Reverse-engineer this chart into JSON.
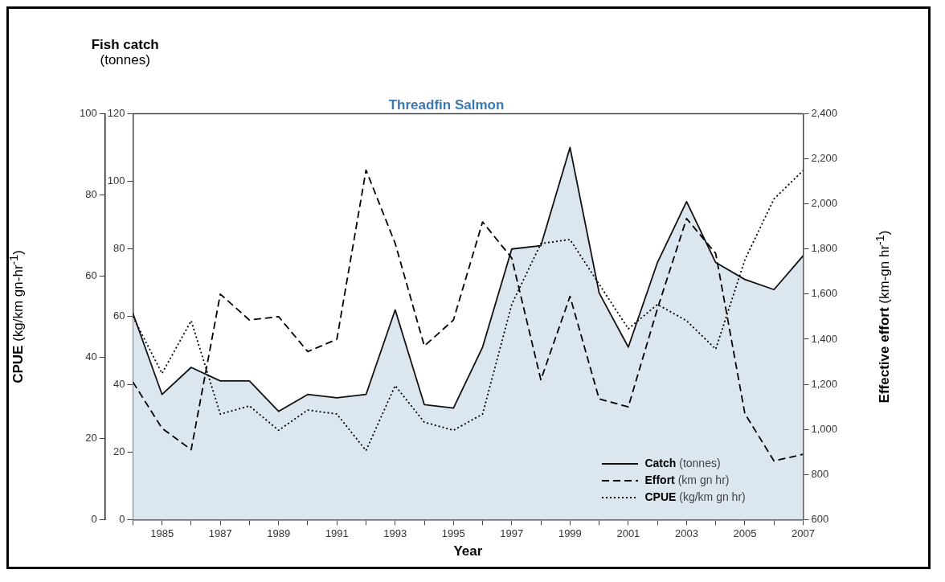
{
  "chart_data": {
    "type": "line",
    "title": "Threadfin Salmon",
    "xlabel": "Year",
    "ylabel": "Fish catch (tonnes)",
    "y2label": "Effective effort (km-gn hr$^{-1}$)",
    "y3label": "CPUE  (kg/km gn-hr$^{-1}$)",
    "x": [
      1984,
      1985,
      1986,
      1987,
      1988,
      1989,
      1990,
      1991,
      1992,
      1993,
      1994,
      1995,
      1996,
      1997,
      1998,
      1999,
      2000,
      2001,
      2002,
      2003,
      2004,
      2005,
      2006,
      2007
    ],
    "series": [
      {
        "name": "Catch (tonnes)",
        "type": "area",
        "color": "#dce6ef",
        "line_style": "solid",
        "values": [
          61,
          37,
          45,
          41,
          41,
          32,
          37,
          36,
          37,
          62,
          34,
          33,
          51,
          80,
          81,
          110,
          67,
          51,
          76,
          94,
          76,
          71,
          68,
          78
        ]
      },
      {
        "name": "Effort (km gn hr)",
        "type": "line",
        "axis": "y2",
        "color": "#000000",
        "line_style": "dashed",
        "values": [
          1210,
          1005,
          910,
          1600,
          1485,
          1500,
          1345,
          1400,
          2150,
          1825,
          1370,
          1485,
          1920,
          1760,
          1220,
          1590,
          1135,
          1100,
          1535,
          1935,
          1780,
          1070,
          860,
          890
        ]
      },
      {
        "name": "CPUE (kg/km gn hr)",
        "type": "line",
        "axis": "y3",
        "color": "#000000",
        "line_style": "dotted",
        "values": [
          50,
          36,
          49,
          26,
          28,
          22,
          27,
          26,
          17,
          33,
          24,
          22,
          26,
          53,
          68,
          69,
          58,
          47,
          53,
          49,
          42,
          64,
          79,
          86
        ]
      }
    ],
    "xlim": [
      1984,
      2007
    ],
    "xticks": [
      {
        "value": 1984,
        "label": null
      },
      1985,
      {
        "value": 1986,
        "label": null
      },
      1987,
      {
        "value": 1988,
        "label": null
      },
      1989,
      {
        "value": 1990,
        "label": null
      },
      1991,
      {
        "value": 1992,
        "label": null
      },
      1993,
      {
        "value": 1994,
        "label": null
      },
      1995,
      {
        "value": 1996,
        "label": null
      },
      1997,
      {
        "value": 1998,
        "label": null
      },
      1999,
      {
        "value": 2000,
        "label": null
      },
      2001,
      {
        "value": 2002,
        "label": null
      },
      2003,
      {
        "value": 2004,
        "label": null
      },
      2005,
      {
        "value": 2006,
        "label": null
      },
      2007
    ],
    "ylim": [
      0,
      120
    ],
    "yticks": [
      0,
      20,
      40,
      60,
      80,
      100,
      120
    ],
    "y2lim": [
      600,
      2400
    ],
    "y2ticks": [
      600,
      800,
      {
        "value": 1000,
        "label": "1,000"
      },
      {
        "value": 1200,
        "label": "1,200"
      },
      {
        "value": 1400,
        "label": "1,400"
      },
      {
        "value": 1600,
        "label": "1,600"
      },
      {
        "value": 1800,
        "label": "1,800"
      },
      {
        "value": 2000,
        "label": "2,000"
      },
      {
        "value": 2200,
        "label": "2,200"
      },
      {
        "value": 2400,
        "label": "2,400"
      }
    ],
    "y3lim": [
      0,
      100
    ],
    "y3ticks": [
      0,
      20,
      40,
      60,
      80,
      100
    ],
    "grid": false,
    "legend": "bottom right"
  }
}
